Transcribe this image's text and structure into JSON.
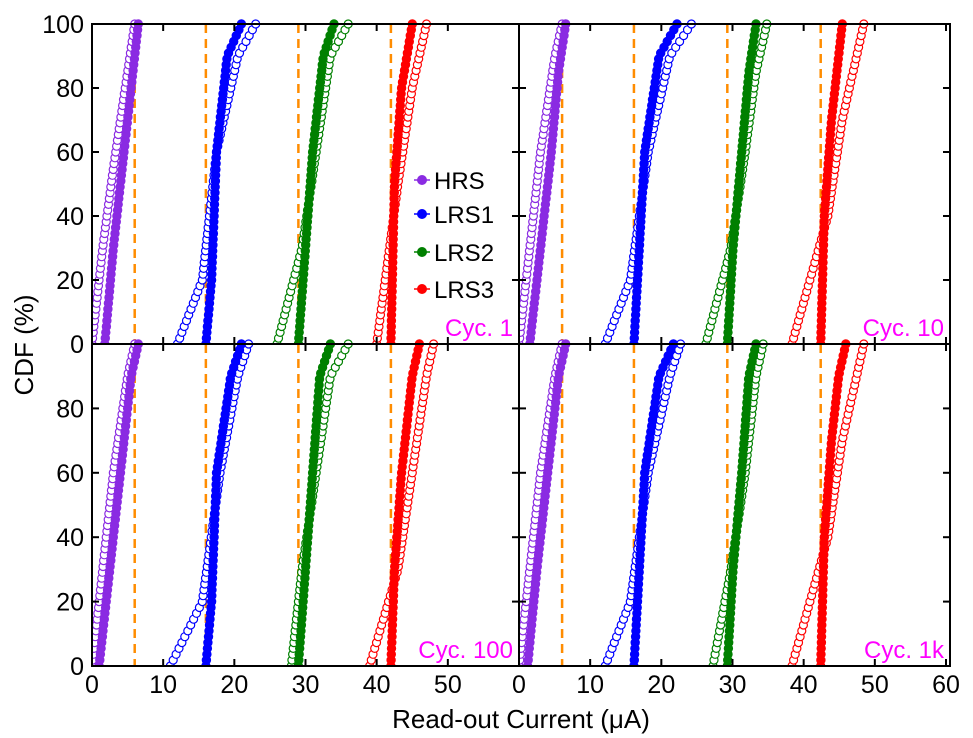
{
  "chart_data": {
    "type": "scatter",
    "subtype": "cdf-line-markers",
    "layout": "2x2-grid-shared-axes",
    "ylabel": "CDF (%)",
    "xlabel": "Read-out Current (μA)",
    "xlim": [
      0,
      30
    ],
    "ylim": [
      0,
      100
    ],
    "x_ticks_left": [
      "0",
      "10",
      "20",
      "30",
      "40",
      "50"
    ],
    "x_ticks_right": [
      "0",
      "10",
      "20",
      "30",
      "40",
      "50",
      "60"
    ],
    "y_ticks": [
      "0",
      "20",
      "40",
      "60",
      "80",
      "100"
    ],
    "legend_position": "center of top-left panel",
    "colors": {
      "HRS": "#8a2be2",
      "LRS1": "#0000ff",
      "LRS2": "#008000",
      "LRS3": "#ff0000",
      "threshold": "#ff8c00",
      "panel_label": "#ff00ff"
    },
    "series": [
      {
        "name": "HRS",
        "color": "#8a2be2"
      },
      {
        "name": "LRS1",
        "color": "#0000ff"
      },
      {
        "name": "LRS2",
        "color": "#008000"
      },
      {
        "name": "LRS3",
        "color": "#ff0000"
      }
    ],
    "thresholds": [
      6,
      16,
      29,
      42
    ],
    "panels": [
      {
        "label": "Cyc. 1",
        "distributions": [
          {
            "series": "HRS",
            "filled": [
              [
                1.8,
                0
              ],
              [
                3,
                30
              ],
              [
                4,
                50
              ],
              [
                5.5,
                80
              ],
              [
                6.5,
                100
              ]
            ],
            "open": [
              [
                0,
                0
              ],
              [
                1.5,
                30
              ],
              [
                3,
                55
              ],
              [
                5,
                85
              ],
              [
                6,
                100
              ]
            ]
          },
          {
            "series": "LRS1",
            "filled": [
              [
                16,
                0
              ],
              [
                16.8,
                20
              ],
              [
                17.5,
                60
              ],
              [
                19,
                90
              ],
              [
                21,
                100
              ]
            ],
            "open": [
              [
                12,
                0
              ],
              [
                15.5,
                20
              ],
              [
                17.5,
                60
              ],
              [
                20.5,
                90
              ],
              [
                23,
                100
              ]
            ]
          },
          {
            "series": "LRS2",
            "filled": [
              [
                29,
                0
              ],
              [
                30,
                30
              ],
              [
                31,
                60
              ],
              [
                32.5,
                90
              ],
              [
                34,
                100
              ]
            ],
            "open": [
              [
                26,
                0
              ],
              [
                29.5,
                30
              ],
              [
                31.5,
                60
              ],
              [
                33.5,
                90
              ],
              [
                36,
                100
              ]
            ]
          },
          {
            "series": "LRS3",
            "filled": [
              [
                42,
                0
              ],
              [
                42.5,
                50
              ],
              [
                43.5,
                80
              ],
              [
                45,
                100
              ]
            ],
            "open": [
              [
                40,
                0
              ],
              [
                43,
                50
              ],
              [
                45,
                80
              ],
              [
                47,
                100
              ]
            ]
          }
        ]
      },
      {
        "label": "Cyc. 10",
        "distributions": [
          {
            "series": "HRS",
            "filled": [
              [
                1.5,
                0
              ],
              [
                3,
                30
              ],
              [
                4.5,
                60
              ],
              [
                5.5,
                85
              ],
              [
                6.5,
                100
              ]
            ],
            "open": [
              [
                0,
                0
              ],
              [
                1.5,
                30
              ],
              [
                3,
                60
              ],
              [
                5,
                90
              ],
              [
                6,
                100
              ]
            ]
          },
          {
            "series": "LRS1",
            "filled": [
              [
                16,
                0
              ],
              [
                16.5,
                20
              ],
              [
                17.5,
                60
              ],
              [
                19.5,
                90
              ],
              [
                22,
                100
              ]
            ],
            "open": [
              [
                12,
                0
              ],
              [
                15.5,
                20
              ],
              [
                18,
                60
              ],
              [
                21,
                90
              ],
              [
                24,
                100
              ]
            ]
          },
          {
            "series": "LRS2",
            "filled": [
              [
                29,
                0
              ],
              [
                29.8,
                30
              ],
              [
                31,
                60
              ],
              [
                32,
                85
              ],
              [
                33,
                100
              ]
            ],
            "open": [
              [
                26,
                0
              ],
              [
                29.5,
                30
              ],
              [
                31.5,
                60
              ],
              [
                33,
                85
              ],
              [
                34.5,
                100
              ]
            ]
          },
          {
            "series": "LRS3",
            "filled": [
              [
                42,
                0
              ],
              [
                42.5,
                40
              ],
              [
                43.5,
                70
              ],
              [
                45,
                100
              ]
            ],
            "open": [
              [
                38,
                0
              ],
              [
                43,
                40
              ],
              [
                45,
                70
              ],
              [
                48,
                100
              ]
            ]
          }
        ]
      },
      {
        "label": "Cyc. 100",
        "distributions": [
          {
            "series": "HRS",
            "filled": [
              [
                1,
                0
              ],
              [
                2.5,
                30
              ],
              [
                4,
                60
              ],
              [
                5.5,
                90
              ],
              [
                6.5,
                100
              ]
            ],
            "open": [
              [
                0,
                0
              ],
              [
                1.5,
                30
              ],
              [
                3,
                60
              ],
              [
                5,
                90
              ],
              [
                6,
                100
              ]
            ]
          },
          {
            "series": "LRS1",
            "filled": [
              [
                16,
                0
              ],
              [
                16.8,
                20
              ],
              [
                17.5,
                60
              ],
              [
                19.5,
                90
              ],
              [
                21,
                100
              ]
            ],
            "open": [
              [
                11,
                0
              ],
              [
                15.5,
                20
              ],
              [
                18,
                60
              ],
              [
                20.5,
                90
              ],
              [
                22,
                100
              ]
            ]
          },
          {
            "series": "LRS2",
            "filled": [
              [
                29,
                0
              ],
              [
                30,
                30
              ],
              [
                31,
                60
              ],
              [
                32,
                90
              ],
              [
                33.5,
                100
              ]
            ],
            "open": [
              [
                28,
                0
              ],
              [
                29.5,
                30
              ],
              [
                31.5,
                60
              ],
              [
                33.5,
                90
              ],
              [
                36,
                100
              ]
            ]
          },
          {
            "series": "LRS3",
            "filled": [
              [
                42,
                0
              ],
              [
                42.5,
                30
              ],
              [
                43.5,
                60
              ],
              [
                45,
                90
              ],
              [
                46,
                100
              ]
            ],
            "open": [
              [
                39,
                0
              ],
              [
                43,
                30
              ],
              [
                45,
                60
              ],
              [
                47,
                90
              ],
              [
                48,
                100
              ]
            ]
          }
        ]
      },
      {
        "label": "Cyc. 1k",
        "distributions": [
          {
            "series": "HRS",
            "filled": [
              [
                1.2,
                0
              ],
              [
                2.5,
                30
              ],
              [
                4,
                60
              ],
              [
                5.5,
                90
              ],
              [
                6.5,
                100
              ]
            ],
            "open": [
              [
                0,
                0
              ],
              [
                1.5,
                30
              ],
              [
                3,
                60
              ],
              [
                5,
                90
              ],
              [
                6,
                100
              ]
            ]
          },
          {
            "series": "LRS1",
            "filled": [
              [
                16,
                0
              ],
              [
                16.5,
                20
              ],
              [
                17.5,
                60
              ],
              [
                19.5,
                90
              ],
              [
                21.5,
                100
              ]
            ],
            "open": [
              [
                12,
                0
              ],
              [
                15.5,
                20
              ],
              [
                18,
                60
              ],
              [
                21,
                90
              ],
              [
                22.5,
                100
              ]
            ]
          },
          {
            "series": "LRS2",
            "filled": [
              [
                29,
                0
              ],
              [
                29.8,
                30
              ],
              [
                31,
                60
              ],
              [
                32,
                90
              ],
              [
                33,
                100
              ]
            ],
            "open": [
              [
                27,
                0
              ],
              [
                29.5,
                30
              ],
              [
                31.5,
                60
              ],
              [
                33,
                90
              ],
              [
                34,
                100
              ]
            ]
          },
          {
            "series": "LRS3",
            "filled": [
              [
                42,
                0
              ],
              [
                42.5,
                40
              ],
              [
                43.5,
                70
              ],
              [
                44.5,
                90
              ],
              [
                45.5,
                100
              ]
            ],
            "open": [
              [
                38,
                0
              ],
              [
                43,
                40
              ],
              [
                45,
                70
              ],
              [
                47,
                90
              ],
              [
                48,
                100
              ]
            ]
          }
        ]
      }
    ]
  }
}
